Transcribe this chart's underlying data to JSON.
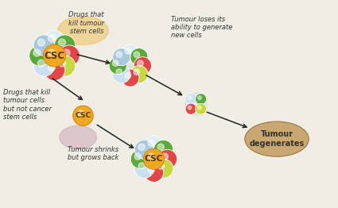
{
  "bg_color": "#f0ede4",
  "fig_bg": "#f0ede4",
  "csc_color": "#f0a820",
  "cell_colors": {
    "blue": "#a8c8dc",
    "green": "#5aaa3a",
    "red": "#e04848",
    "yellow_green": "#c8d840",
    "light_blue": "#c8e0f0",
    "white_blue": "#dceef8"
  },
  "arrow_color": "#222222",
  "text_color": "#333333",
  "orange_highlight": "#f0b840",
  "tumour_degenerate_color": "#c8a870",
  "shrink_shadow_color": "#c090a8",
  "labels": {
    "drugs_kill_stem": "Drugs that\nkill tumour\nstem cells",
    "tumour_loses": "Tumour loses its\nability to generate\nnew cells",
    "drugs_kill_tumour": "Drugs that kill\ntumour cells\nbut not cancer\nstem cells",
    "tumour_shrinks": "Tumour shrinks\nbut grows back",
    "tumour_degenerates": "Tumour\ndegenerates"
  }
}
